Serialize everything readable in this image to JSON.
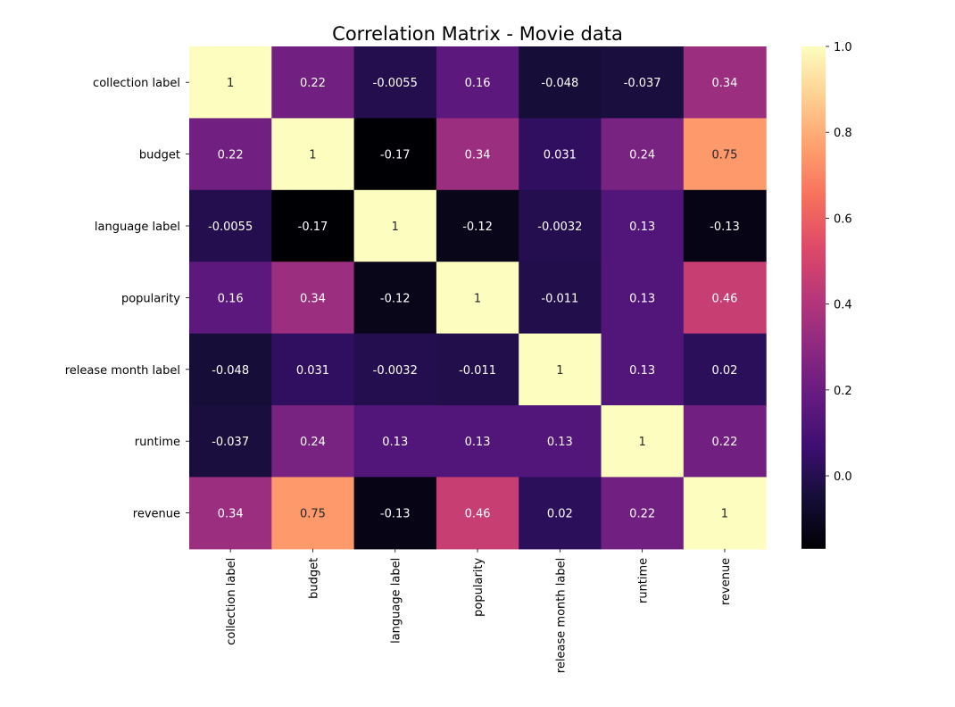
{
  "chart_data": {
    "type": "heatmap",
    "title": "Correlation Matrix - Movie data",
    "xlabel": "",
    "ylabel": "",
    "labels": [
      "collection label",
      "budget",
      "language label",
      "popularity",
      "release month label",
      "runtime",
      "revenue"
    ],
    "matrix": [
      [
        1,
        0.22,
        -0.0055,
        0.16,
        -0.048,
        -0.037,
        0.34
      ],
      [
        0.22,
        1,
        -0.17,
        0.34,
        0.031,
        0.24,
        0.75
      ],
      [
        -0.0055,
        -0.17,
        1,
        -0.12,
        -0.0032,
        0.13,
        -0.13
      ],
      [
        0.16,
        0.34,
        -0.12,
        1,
        -0.011,
        0.13,
        0.46
      ],
      [
        -0.048,
        0.031,
        -0.0032,
        -0.011,
        1,
        0.13,
        0.02
      ],
      [
        -0.037,
        0.24,
        0.13,
        0.13,
        0.13,
        1,
        0.22
      ],
      [
        0.34,
        0.75,
        -0.13,
        0.46,
        0.02,
        0.22,
        1
      ]
    ],
    "colormap": "magma",
    "colorbar": {
      "range": [
        -0.17,
        1.0
      ],
      "ticks": [
        1.0,
        0.8,
        0.6,
        0.4,
        0.2,
        0.0
      ],
      "tick_labels": [
        "1.0",
        "0.8",
        "0.6",
        "0.4",
        "0.2",
        "0.0"
      ]
    },
    "annotations": "on",
    "grid": false
  }
}
